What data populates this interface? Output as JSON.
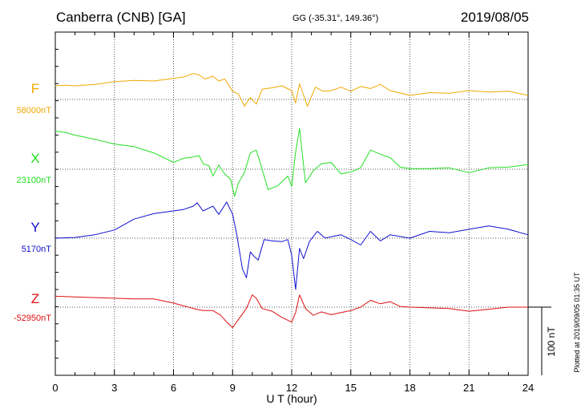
{
  "header": {
    "title": "Canberra (CNB)  [GA]",
    "coords": "GG (-35.31°, 149.36°)",
    "date": "2019/08/05"
  },
  "footer": {
    "plotted": "Plotted at 2019/09/05 01:35 UT"
  },
  "chart_data": {
    "type": "line",
    "xlabel": "U T (hour)",
    "xlim": [
      0,
      24
    ],
    "x_ticks": [
      0,
      3,
      6,
      9,
      12,
      15,
      18,
      21,
      24
    ],
    "scale_bar": {
      "label": "100 nT",
      "value_nT": 100
    },
    "grid": true,
    "series": [
      {
        "name": "F",
        "baseline_label": "58000nT",
        "baseline": 58000,
        "color": "#f0a800",
        "points": [
          [
            0,
            58020
          ],
          [
            0.5,
            58021
          ],
          [
            1,
            58020
          ],
          [
            2,
            58022
          ],
          [
            3,
            58026
          ],
          [
            4,
            58028
          ],
          [
            5,
            58027
          ],
          [
            6,
            58031
          ],
          [
            6.5,
            58033
          ],
          [
            7,
            58038
          ],
          [
            7.3,
            58036
          ],
          [
            7.6,
            58030
          ],
          [
            8,
            58034
          ],
          [
            8.3,
            58027
          ],
          [
            8.6,
            58030
          ],
          [
            9,
            58012
          ],
          [
            9.3,
            58008
          ],
          [
            9.6,
            57990
          ],
          [
            9.9,
            58003
          ],
          [
            10.2,
            57993
          ],
          [
            10.5,
            58015
          ],
          [
            11,
            58017
          ],
          [
            11.5,
            58020
          ],
          [
            12,
            58013
          ],
          [
            12.2,
            57995
          ],
          [
            12.4,
            58023
          ],
          [
            12.8,
            57990
          ],
          [
            13.2,
            58018
          ],
          [
            13.6,
            58012
          ],
          [
            14,
            58013
          ],
          [
            14.5,
            58018
          ],
          [
            15,
            58012
          ],
          [
            15.5,
            58019
          ],
          [
            16,
            58016
          ],
          [
            16.5,
            58022
          ],
          [
            17,
            58013
          ],
          [
            18,
            58006
          ],
          [
            19,
            58010
          ],
          [
            20,
            58009
          ],
          [
            21,
            58013
          ],
          [
            22,
            58011
          ],
          [
            23,
            58012
          ],
          [
            24,
            58006
          ]
        ]
      },
      {
        "name": "X",
        "baseline_label": "23100nT",
        "baseline": 23100,
        "color": "#22e022",
        "points": [
          [
            0,
            23156
          ],
          [
            0.5,
            23154
          ],
          [
            1,
            23150
          ],
          [
            2,
            23144
          ],
          [
            3,
            23137
          ],
          [
            4,
            23133
          ],
          [
            5,
            23124
          ],
          [
            6,
            23110
          ],
          [
            6.5,
            23116
          ],
          [
            7,
            23118
          ],
          [
            7.3,
            23120
          ],
          [
            7.5,
            23108
          ],
          [
            7.8,
            23105
          ],
          [
            8,
            23090
          ],
          [
            8.3,
            23106
          ],
          [
            8.6,
            23093
          ],
          [
            8.9,
            23085
          ],
          [
            9.1,
            23060
          ],
          [
            9.3,
            23080
          ],
          [
            9.6,
            23095
          ],
          [
            9.9,
            23124
          ],
          [
            10.2,
            23128
          ],
          [
            10.5,
            23100
          ],
          [
            10.8,
            23070
          ],
          [
            11.3,
            23076
          ],
          [
            11.8,
            23090
          ],
          [
            12.0,
            23075
          ],
          [
            12.2,
            23125
          ],
          [
            12.4,
            23160
          ],
          [
            12.7,
            23080
          ],
          [
            13.1,
            23098
          ],
          [
            13.5,
            23108
          ],
          [
            14,
            23110
          ],
          [
            14.5,
            23093
          ],
          [
            15,
            23096
          ],
          [
            15.5,
            23102
          ],
          [
            16,
            23128
          ],
          [
            16.5,
            23122
          ],
          [
            17,
            23117
          ],
          [
            17.5,
            23103
          ],
          [
            18,
            23101
          ],
          [
            19,
            23101
          ],
          [
            20,
            23102
          ],
          [
            21,
            23095
          ],
          [
            22,
            23102
          ],
          [
            23,
            23103
          ],
          [
            24,
            23107
          ]
        ]
      },
      {
        "name": "Y",
        "baseline_label": "5170nT",
        "baseline": 5170,
        "color": "#1010d0",
        "points": [
          [
            0,
            5170
          ],
          [
            1,
            5171
          ],
          [
            2,
            5175
          ],
          [
            3,
            5182
          ],
          [
            4,
            5198
          ],
          [
            5,
            5206
          ],
          [
            6,
            5210
          ],
          [
            6.5,
            5212
          ],
          [
            7,
            5217
          ],
          [
            7.2,
            5222
          ],
          [
            7.5,
            5210
          ],
          [
            8,
            5217
          ],
          [
            8.3,
            5205
          ],
          [
            8.7,
            5223
          ],
          [
            9,
            5205
          ],
          [
            9.2,
            5177
          ],
          [
            9.5,
            5125
          ],
          [
            9.7,
            5112
          ],
          [
            9.9,
            5150
          ],
          [
            10.1,
            5143
          ],
          [
            10.3,
            5138
          ],
          [
            10.6,
            5168
          ],
          [
            11,
            5166
          ],
          [
            11.5,
            5165
          ],
          [
            11.8,
            5168
          ],
          [
            12,
            5145
          ],
          [
            12.2,
            5095
          ],
          [
            12.4,
            5155
          ],
          [
            12.6,
            5140
          ],
          [
            12.9,
            5165
          ],
          [
            13.3,
            5180
          ],
          [
            13.7,
            5170
          ],
          [
            14,
            5172
          ],
          [
            14.5,
            5175
          ],
          [
            15,
            5168
          ],
          [
            15.5,
            5160
          ],
          [
            16,
            5180
          ],
          [
            16.5,
            5166
          ],
          [
            17,
            5175
          ],
          [
            18,
            5170
          ],
          [
            19,
            5180
          ],
          [
            20,
            5178
          ],
          [
            21,
            5183
          ],
          [
            22,
            5188
          ],
          [
            23,
            5183
          ],
          [
            24,
            5175
          ]
        ]
      },
      {
        "name": "Z",
        "baseline_label": "-52950nT",
        "baseline": -52950,
        "color": "#e01010",
        "points": [
          [
            0,
            -52934
          ],
          [
            1,
            -52935
          ],
          [
            2,
            -52936
          ],
          [
            3,
            -52937
          ],
          [
            4,
            -52938
          ],
          [
            5,
            -52938
          ],
          [
            6,
            -52944
          ],
          [
            7,
            -52952
          ],
          [
            7.5,
            -52955
          ],
          [
            8,
            -52955
          ],
          [
            8.4,
            -52962
          ],
          [
            8.7,
            -52972
          ],
          [
            9,
            -52980
          ],
          [
            9.3,
            -52968
          ],
          [
            9.7,
            -52952
          ],
          [
            10.0,
            -52932
          ],
          [
            10.2,
            -52937
          ],
          [
            10.5,
            -52952
          ],
          [
            11,
            -52956
          ],
          [
            11.5,
            -52965
          ],
          [
            12,
            -52972
          ],
          [
            12.2,
            -52958
          ],
          [
            12.4,
            -52932
          ],
          [
            12.7,
            -52952
          ],
          [
            13.1,
            -52962
          ],
          [
            13.5,
            -52957
          ],
          [
            14,
            -52961
          ],
          [
            14.5,
            -52958
          ],
          [
            15,
            -52955
          ],
          [
            15.5,
            -52950
          ],
          [
            16,
            -52940
          ],
          [
            16.5,
            -52945
          ],
          [
            17,
            -52942
          ],
          [
            17.5,
            -52949
          ],
          [
            18,
            -52950
          ],
          [
            19,
            -52951
          ],
          [
            20,
            -52952
          ],
          [
            21,
            -52956
          ],
          [
            22,
            -52953
          ],
          [
            23,
            -52950
          ],
          [
            24,
            -52950
          ]
        ]
      }
    ]
  }
}
